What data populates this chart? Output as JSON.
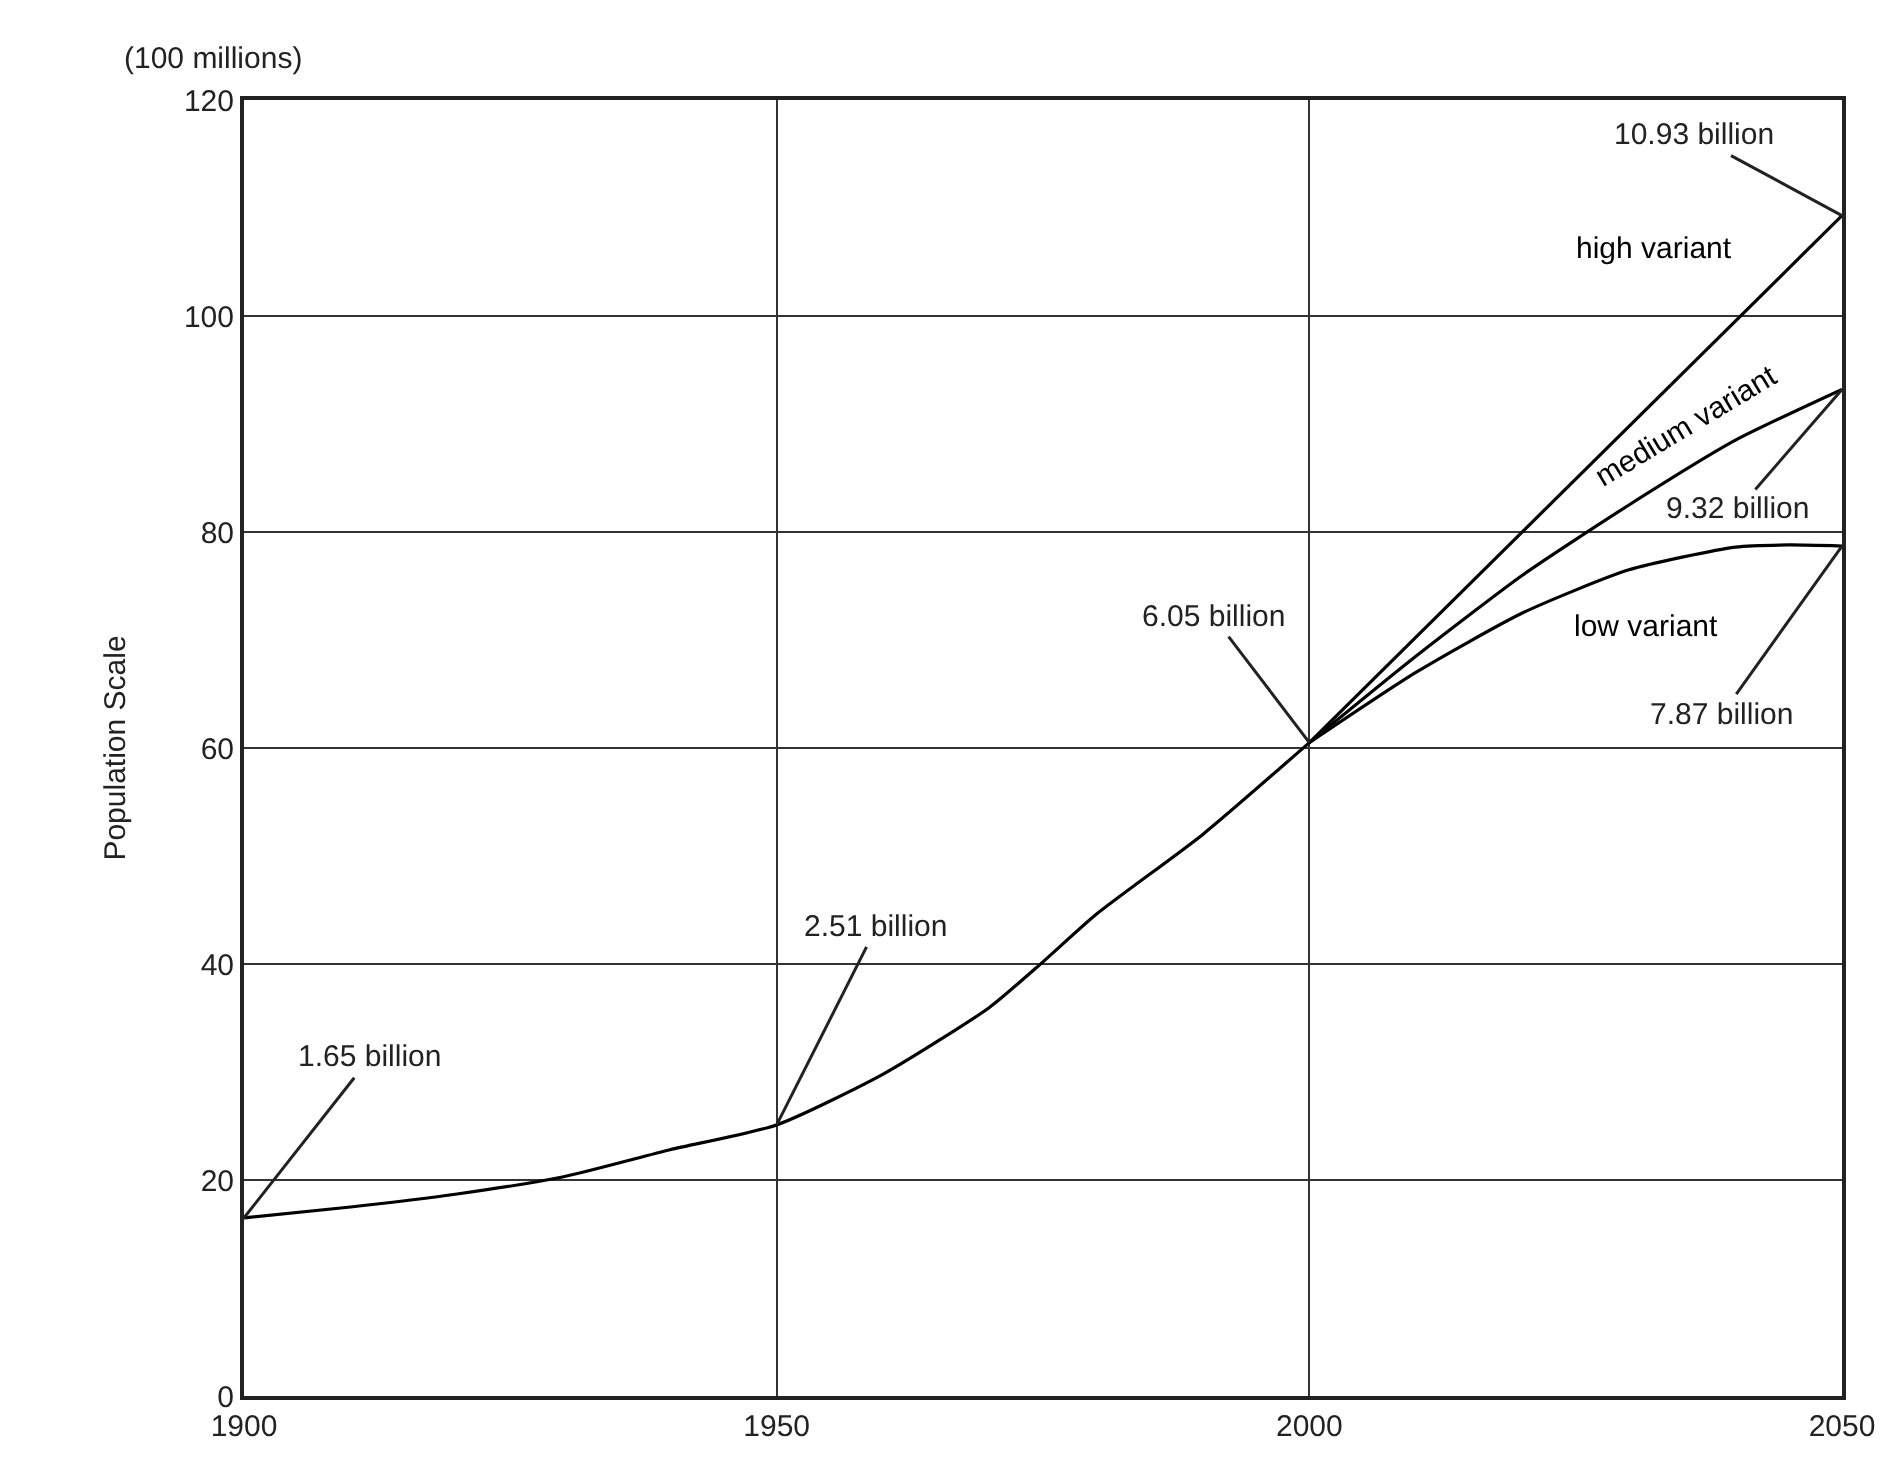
{
  "chart_data": {
    "type": "line",
    "ylabel": "Population Scale",
    "xlim": [
      1900,
      2050
    ],
    "xticks": [
      1900,
      1950,
      2000,
      2050
    ],
    "ylim": [
      0,
      120
    ],
    "yticks": [
      0,
      20,
      40,
      60,
      80,
      100,
      120
    ],
    "grid": true,
    "legend": false,
    "marker": "none",
    "line_style": "solid",
    "series": [
      {
        "color": "#000000",
        "x": [
          1900,
          1910,
          1920,
          1930,
          1940,
          1950,
          1960,
          1970,
          1975,
          1980,
          1990,
          2000
        ],
        "values": [
          16.5,
          17.5,
          18.7,
          20.3,
          22.8,
          25.1,
          29.8,
          36.0,
          40.2,
          44.6,
          52.0,
          60.5
        ]
      },
      {
        "name": "high variant",
        "color": "#000000",
        "x": [
          2000,
          2050
        ],
        "values": [
          60.5,
          109.3
        ]
      },
      {
        "name": "medium variant",
        "color": "#000000",
        "x": [
          2000,
          2010,
          2020,
          2030,
          2040,
          2050
        ],
        "values": [
          60.5,
          68.5,
          76.0,
          82.5,
          88.5,
          93.2
        ]
      },
      {
        "name": "low variant",
        "color": "#000000",
        "x": [
          2000,
          2010,
          2020,
          2030,
          2040,
          2045,
          2050
        ],
        "values": [
          60.5,
          67.0,
          72.5,
          76.5,
          78.6,
          78.8,
          78.7
        ]
      }
    ],
    "annotations": [
      "(100 millions)",
      {
        "text": "1.65 billion",
        "x": 1900,
        "y": 16.5
      },
      {
        "text": "2.51 billion",
        "x": 1950,
        "y": 25.1
      },
      {
        "text": "6.05 billion",
        "x": 2000,
        "y": 60.5
      },
      {
        "text": "10.93 billion",
        "x": 2050,
        "y": 109.3
      },
      {
        "text": "9.32 billion",
        "x": 2050,
        "y": 93.2
      },
      {
        "text": "7.87 billion",
        "x": 2050,
        "y": 78.7
      }
    ]
  }
}
